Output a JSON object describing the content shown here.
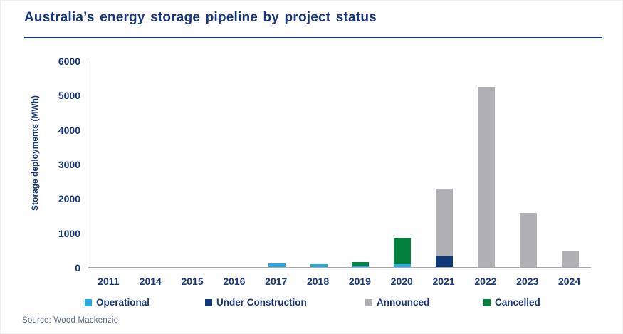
{
  "page": {
    "title": "Australia’s energy storage pipeline by project status",
    "source": "Source: Wood Mackenzie"
  },
  "colors": {
    "navy_text": "#17367B",
    "operational": "#29A9E1",
    "under_construction": "#0F3878",
    "announced": "#AFAFB4",
    "cancelled": "#00823C",
    "axis_line": "#A6A6A6",
    "source_text": "#5C6B8A"
  },
  "chart_data": {
    "type": "bar",
    "stacked": true,
    "title": "Australia’s energy storage pipeline by project status",
    "xlabel": "",
    "ylabel": "Storage deployments (MWh)",
    "ylim": [
      0,
      6000
    ],
    "yticks": [
      0,
      1000,
      2000,
      3000,
      4000,
      5000,
      6000
    ],
    "grid": false,
    "legend_position": "bottom",
    "categories": [
      "2011",
      "2014",
      "2015",
      "2016",
      "2017",
      "2018",
      "2019",
      "2020",
      "2021",
      "2022",
      "2023",
      "2024"
    ],
    "series": [
      {
        "name": "Operational",
        "color": "#29A9E1",
        "values": [
          0,
          0,
          0,
          0,
          120,
          110,
          70,
          100,
          0,
          0,
          0,
          0
        ]
      },
      {
        "name": "Under Construction",
        "color": "#0F3878",
        "values": [
          0,
          0,
          0,
          0,
          0,
          0,
          0,
          0,
          340,
          0,
          0,
          0
        ]
      },
      {
        "name": "Announced",
        "color": "#AFAFB4",
        "values": [
          0,
          0,
          0,
          0,
          0,
          0,
          0,
          0,
          1960,
          5260,
          1600,
          500
        ]
      },
      {
        "name": "Cancelled",
        "color": "#00823C",
        "values": [
          0,
          0,
          0,
          0,
          0,
          0,
          100,
          770,
          0,
          0,
          0,
          0
        ]
      }
    ]
  },
  "legend": {
    "items": [
      {
        "label": "Operational",
        "color": "#29A9E1"
      },
      {
        "label": "Under Construction",
        "color": "#0F3878"
      },
      {
        "label": "Announced",
        "color": "#AFAFB4"
      },
      {
        "label": "Cancelled",
        "color": "#00823C"
      }
    ]
  }
}
